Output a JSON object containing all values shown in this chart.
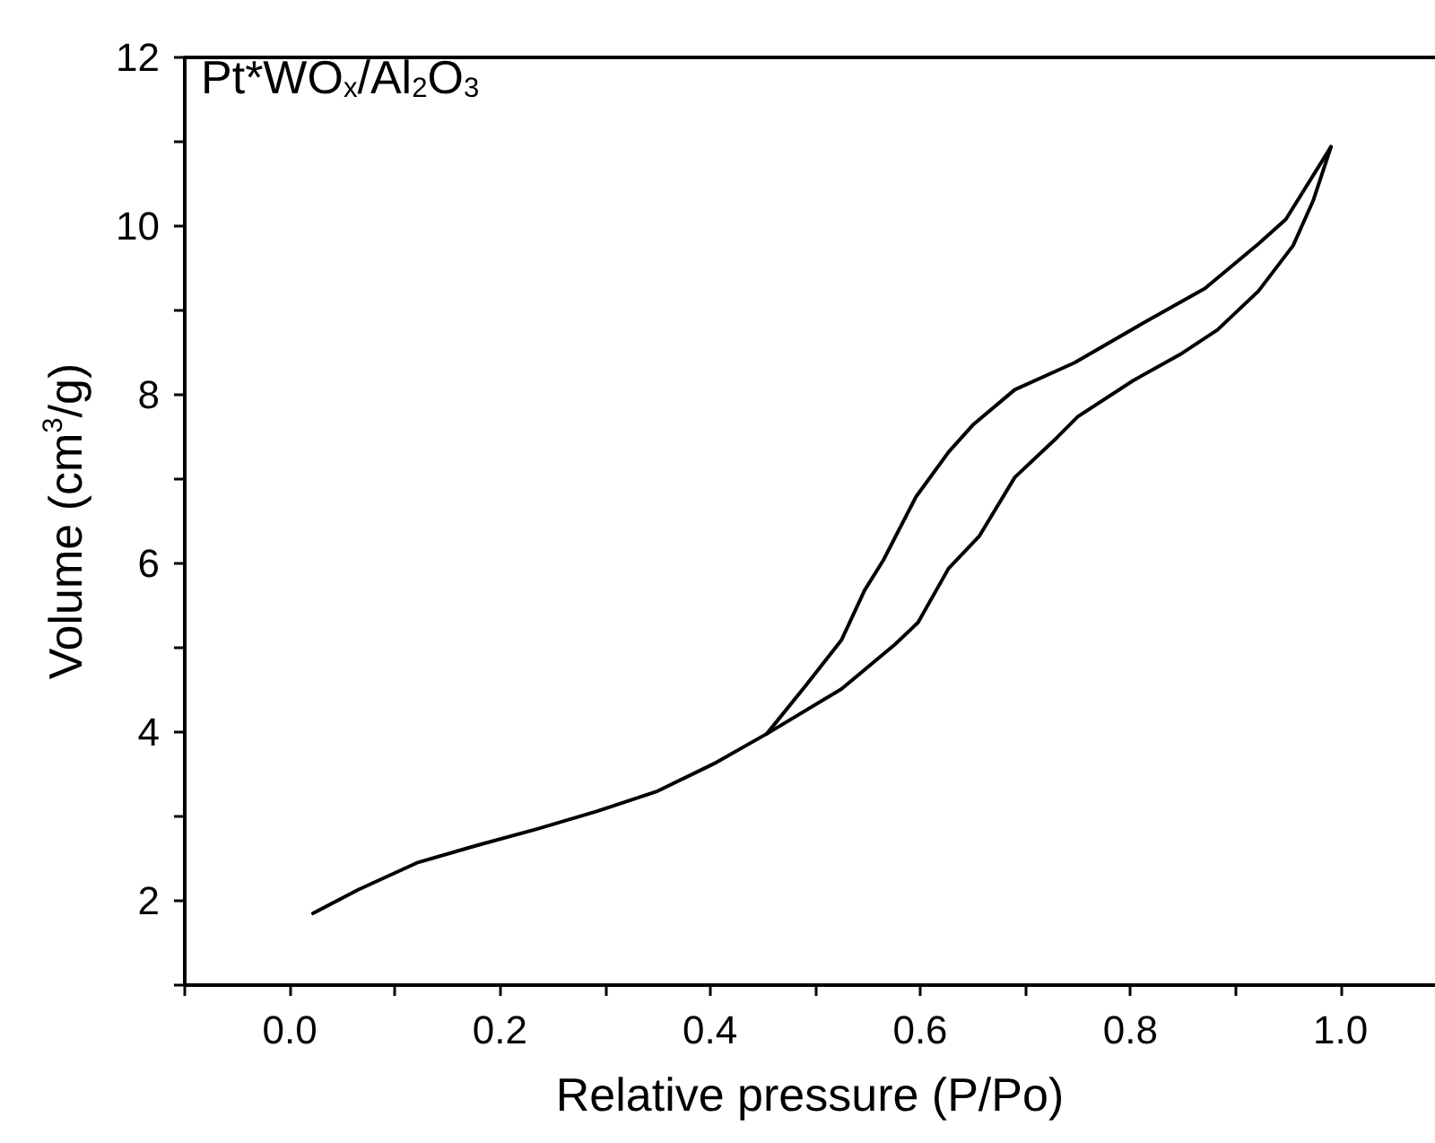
{
  "chart_data": {
    "type": "line",
    "xlabel": "Relative pressure (P/Po)",
    "ylabel": "Volume (cm$^{3}$/g)",
    "annotations": [
      "Pt*WO$_{x}$/Al$_{2}$O$_{3}$"
    ],
    "xlim": [
      -0.1,
      1.09
    ],
    "ylim": [
      1,
      12
    ],
    "xticks": [
      {
        "value": -0.1,
        "label": null
      },
      {
        "value": 0,
        "label": "0.0"
      },
      {
        "value": 0.1,
        "label": null
      },
      {
        "value": 0.2,
        "label": "0.2"
      },
      {
        "value": 0.3,
        "label": null
      },
      {
        "value": 0.4,
        "label": "0.4"
      },
      {
        "value": 0.5,
        "label": null
      },
      {
        "value": 0.6,
        "label": "0.6"
      },
      {
        "value": 0.7,
        "label": null
      },
      {
        "value": 0.8,
        "label": "0.8"
      },
      {
        "value": 0.9,
        "label": null
      },
      {
        "value": 1,
        "label": "1.0"
      }
    ],
    "yticks": [
      {
        "value": 1,
        "label": null
      },
      2,
      {
        "value": 3,
        "label": null
      },
      4,
      {
        "value": 5,
        "label": null
      },
      6,
      {
        "value": 7,
        "label": null
      },
      8,
      {
        "value": 9,
        "label": null
      },
      10,
      {
        "value": 11,
        "label": null
      },
      12
    ],
    "grid": false,
    "marker": "none",
    "line_style": "solid",
    "series": [
      {
        "color": "#000000",
        "x": [
          0.022,
          0.065,
          0.121,
          0.179,
          0.235,
          0.292,
          0.35,
          0.406,
          0.454,
          0.525,
          0.576,
          0.598,
          0.627,
          0.656,
          0.69,
          0.73,
          0.75,
          0.803,
          0.849,
          0.883,
          0.922,
          0.955,
          0.974,
          0.991
        ],
        "values": [
          1.85,
          2.13,
          2.45,
          2.66,
          2.85,
          3.06,
          3.3,
          3.64,
          3.98,
          4.51,
          5.04,
          5.3,
          5.94,
          6.32,
          7.02,
          7.49,
          7.74,
          8.17,
          8.49,
          8.77,
          9.23,
          9.77,
          10.3,
          10.94
        ]
      },
      {
        "color": "#000000",
        "x": [
          0.991,
          0.948,
          0.922,
          0.871,
          0.815,
          0.747,
          0.69,
          0.65,
          0.627,
          0.596,
          0.565,
          0.547,
          0.525,
          0.491,
          0.454
        ],
        "values": [
          10.94,
          10.08,
          9.79,
          9.26,
          8.87,
          8.38,
          8.06,
          7.64,
          7.32,
          6.79,
          6.04,
          5.68,
          5.09,
          4.55,
          3.98
        ]
      }
    ]
  }
}
